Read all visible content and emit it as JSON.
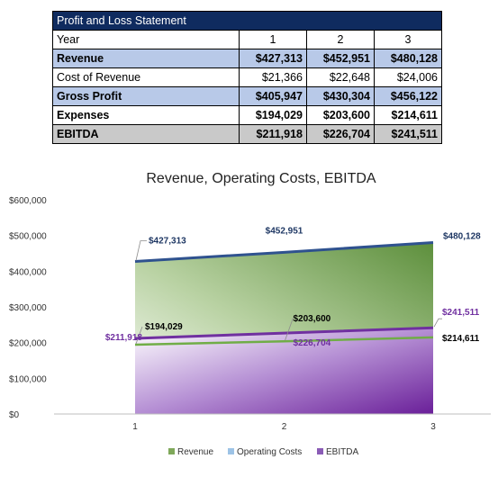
{
  "table": {
    "title": "Profit and Loss Statement",
    "header_label": "Year",
    "years": [
      "1",
      "2",
      "3"
    ],
    "rows": [
      {
        "label": "Revenue",
        "values": [
          "$427,313",
          "$452,951",
          "$480,128"
        ]
      },
      {
        "label": "Cost of Revenue",
        "values": [
          "$21,366",
          "$22,648",
          "$24,006"
        ]
      },
      {
        "label": "Gross Profit",
        "values": [
          "$405,947",
          "$430,304",
          "$456,122"
        ]
      },
      {
        "label": "Expenses",
        "values": [
          "$194,029",
          "$203,600",
          "$214,611"
        ]
      },
      {
        "label": "EBITDA",
        "values": [
          "$211,918",
          "$226,704",
          "$241,511"
        ]
      }
    ]
  },
  "chart_data": {
    "type": "area",
    "title": "Revenue, Operating Costs, EBITDA",
    "categories": [
      1,
      2,
      3
    ],
    "ylim": [
      0,
      600000
    ],
    "yticks": [
      0,
      100000,
      200000,
      300000,
      400000,
      500000,
      600000
    ],
    "ytick_labels": [
      "$0",
      "$100,000",
      "$200,000",
      "$300,000",
      "$400,000",
      "$500,000",
      "$600,000"
    ],
    "legend_position": "bottom",
    "series": [
      {
        "name": "Revenue",
        "values": [
          427313,
          452951,
          480128
        ],
        "labels": [
          "$427,313",
          "$452,951",
          "$480,128"
        ],
        "color": "#2f528f",
        "label_color": "#1f3864"
      },
      {
        "name": "Operating Costs",
        "values": [
          194029,
          203600,
          214611
        ],
        "labels": [
          "$194,029",
          "$203,600",
          "$214,611"
        ],
        "color": "#70ad47",
        "label_color": "#000000"
      },
      {
        "name": "EBITDA",
        "values": [
          211918,
          226704,
          241511
        ],
        "labels": [
          "$211,918",
          "$226,704",
          "$241,511"
        ],
        "color": "#7030a0",
        "label_color": "#7030a0"
      }
    ]
  }
}
